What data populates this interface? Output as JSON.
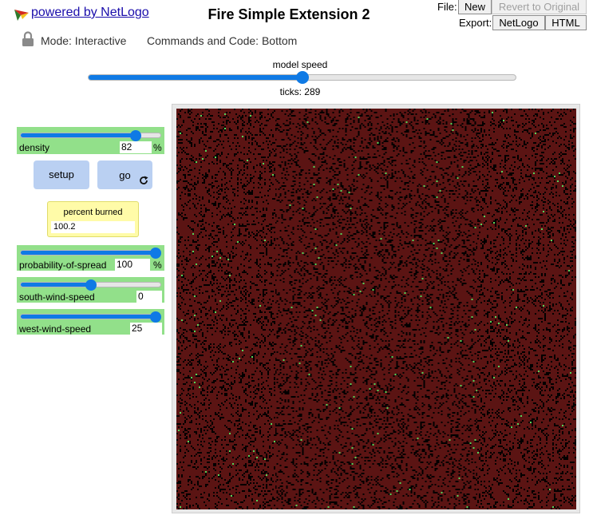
{
  "header": {
    "powered_by": "powered by NetLogo",
    "title": "Fire Simple Extension 2",
    "file_label": "File:",
    "export_label": "Export:",
    "new_label": "New",
    "revert_label": "Revert to Original",
    "export_netlogo_label": "NetLogo",
    "export_html_label": "HTML"
  },
  "modebar": {
    "mode": "Mode: Interactive",
    "commands": "Commands and Code: Bottom"
  },
  "speed": {
    "label": "model speed",
    "value_fraction": 0.5,
    "ticks": "ticks: 289"
  },
  "widgets": {
    "density": {
      "label": "density",
      "value": "82",
      "unit": "%",
      "fraction": 0.82
    },
    "setup_label": "setup",
    "go_label": "go",
    "monitor": {
      "label": "percent burned",
      "value": "100.2"
    },
    "probability": {
      "label": "probability-of-spread",
      "value": "100",
      "unit": "%",
      "fraction": 1.0
    },
    "south": {
      "label": "south-wind-speed",
      "value": "0",
      "fraction": 0.5
    },
    "west": {
      "label": "west-wind-speed",
      "value": "25",
      "fraction": 1.0
    }
  },
  "view": {
    "patch_grid": 251,
    "forest_density": 0.82,
    "green_fraction": 0.003,
    "colors": {
      "background": "#000000",
      "ember": "#5b1413",
      "green": "#55d45a"
    }
  }
}
